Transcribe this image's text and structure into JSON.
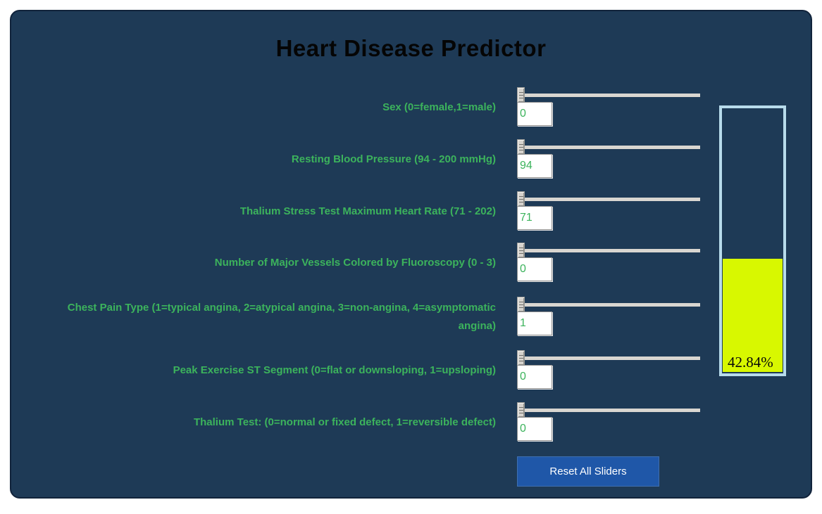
{
  "title": "Heart Disease Predictor",
  "rows": [
    {
      "label": "Sex (0=female,1=male)",
      "value": "0"
    },
    {
      "label": "Resting Blood Pressure (94 - 200 mmHg)",
      "value": "94"
    },
    {
      "label": "Thalium Stress Test Maximum Heart Rate (71 - 202)",
      "value": "71"
    },
    {
      "label": "Number of Major Vessels Colored by Fluoroscopy (0 - 3)",
      "value": "0"
    },
    {
      "label": "Chest Pain Type (1=typical angina, 2=atypical angina, 3=non-angina, 4=asymptomatic angina)",
      "value": "1"
    },
    {
      "label": "Peak Exercise ST Segment (0=flat or downsloping, 1=upsloping)",
      "value": "0"
    },
    {
      "label": "Thalium Test: (0=normal or fixed defect, 1=reversible defect)",
      "value": "0"
    }
  ],
  "gauge": {
    "percent_label": "42.84%",
    "percent_value": 42.84,
    "fill_color": "#d8f800",
    "border_color": "#b7dbeb"
  },
  "reset_button_label": "Reset All Sliders",
  "colors": {
    "window_background": "#1e3a56",
    "label_green": "#3cb35c",
    "button_blue": "#1f57a8",
    "title_black": "#050505"
  }
}
